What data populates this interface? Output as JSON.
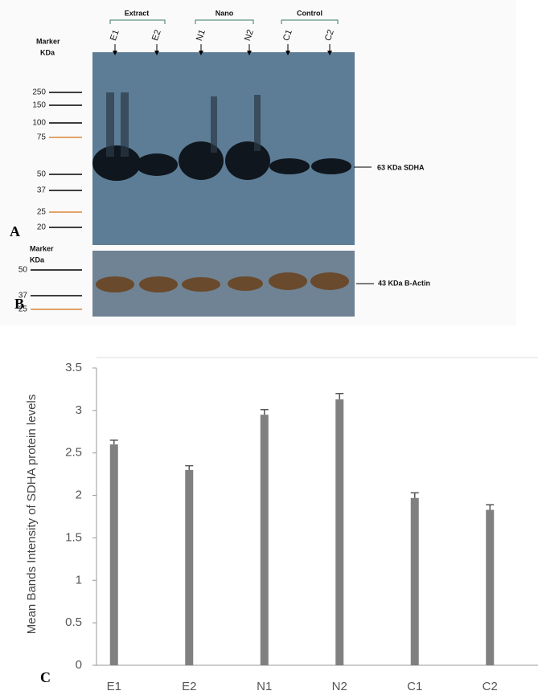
{
  "blot": {
    "groups": [
      "Extract",
      "Nano",
      "Control"
    ],
    "lanes": [
      "E1",
      "E2",
      "N1",
      "N2",
      "C1",
      "C2"
    ],
    "marker_title": [
      "Marker",
      "KDa"
    ],
    "top_markers": [
      250,
      150,
      100,
      75,
      50,
      37,
      25,
      20
    ],
    "top_band_label": "63 KDa SDHA",
    "bottom_marker_title": [
      "Marker",
      "KDa"
    ],
    "bottom_markers": [
      50,
      37,
      25
    ],
    "bottom_band_label": "43 KDa B-Actin"
  },
  "panels": [
    "A",
    "B",
    "C"
  ],
  "chart_data": {
    "type": "bar",
    "ylabel": "Mean Bands Intensity of SDHA protein levels",
    "categories": [
      "E1",
      "E2",
      "N1",
      "N2",
      "C1",
      "C2"
    ],
    "values": [
      2.6,
      2.3,
      2.95,
      3.13,
      1.97,
      1.83
    ],
    "errors": [
      0.05,
      0.05,
      0.06,
      0.07,
      0.06,
      0.06
    ],
    "color": "#808080",
    "ylim": [
      0,
      3.5
    ],
    "yticks": [
      0,
      0.5,
      1,
      1.5,
      2,
      2.5,
      3,
      3.5
    ]
  }
}
